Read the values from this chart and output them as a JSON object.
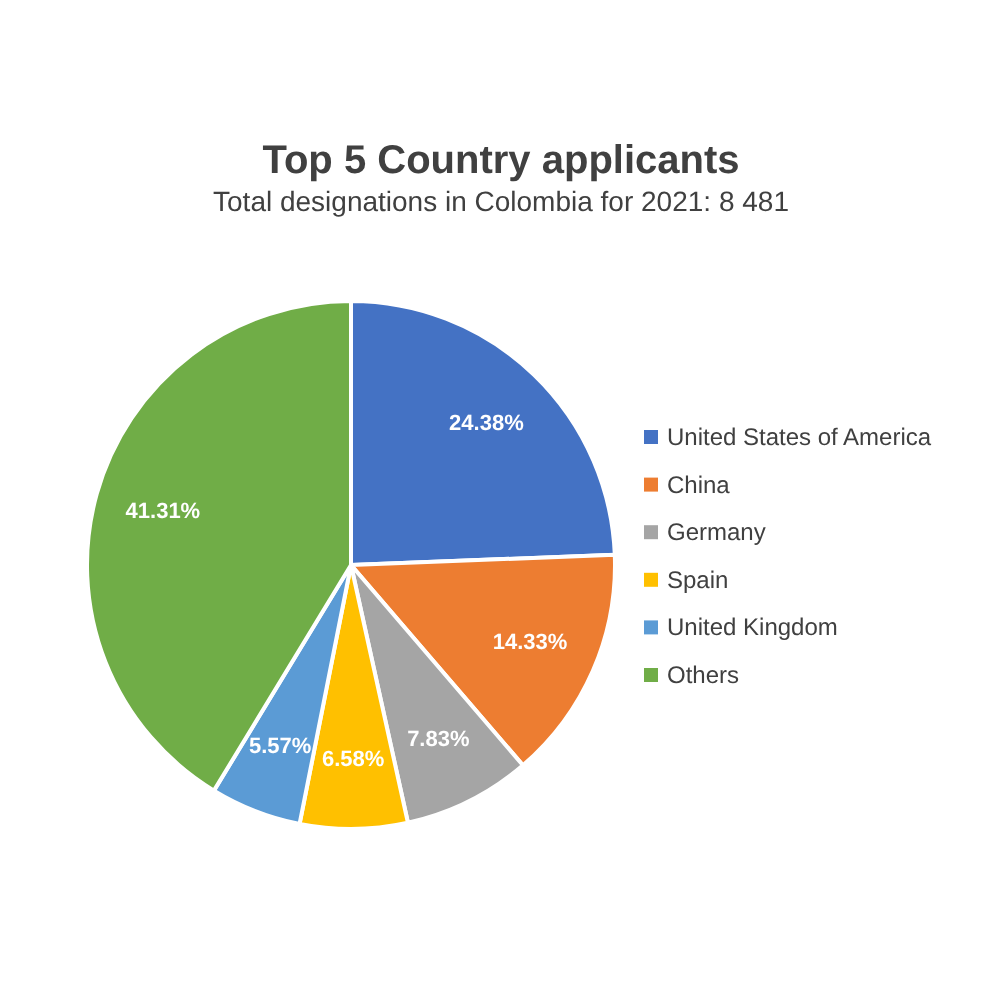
{
  "chart_data": {
    "type": "pie",
    "title": "Top 5 Country applicants",
    "subtitle": "Total designations in Colombia for 2021: 8 481",
    "categories": [
      "United States of America",
      "China",
      "Germany",
      "Spain",
      "United Kingdom",
      "Others"
    ],
    "values": [
      24.38,
      14.33,
      7.83,
      6.58,
      5.57,
      41.31
    ],
    "colors": [
      "#4472c4",
      "#ed7d31",
      "#a5a5a5",
      "#ffc000",
      "#5b9bd5",
      "#70ad47"
    ],
    "value_labels": [
      "24.38%",
      "14.33%",
      "7.83%",
      "6.58%",
      "5.57%",
      "41.31%"
    ],
    "legend": "right"
  }
}
